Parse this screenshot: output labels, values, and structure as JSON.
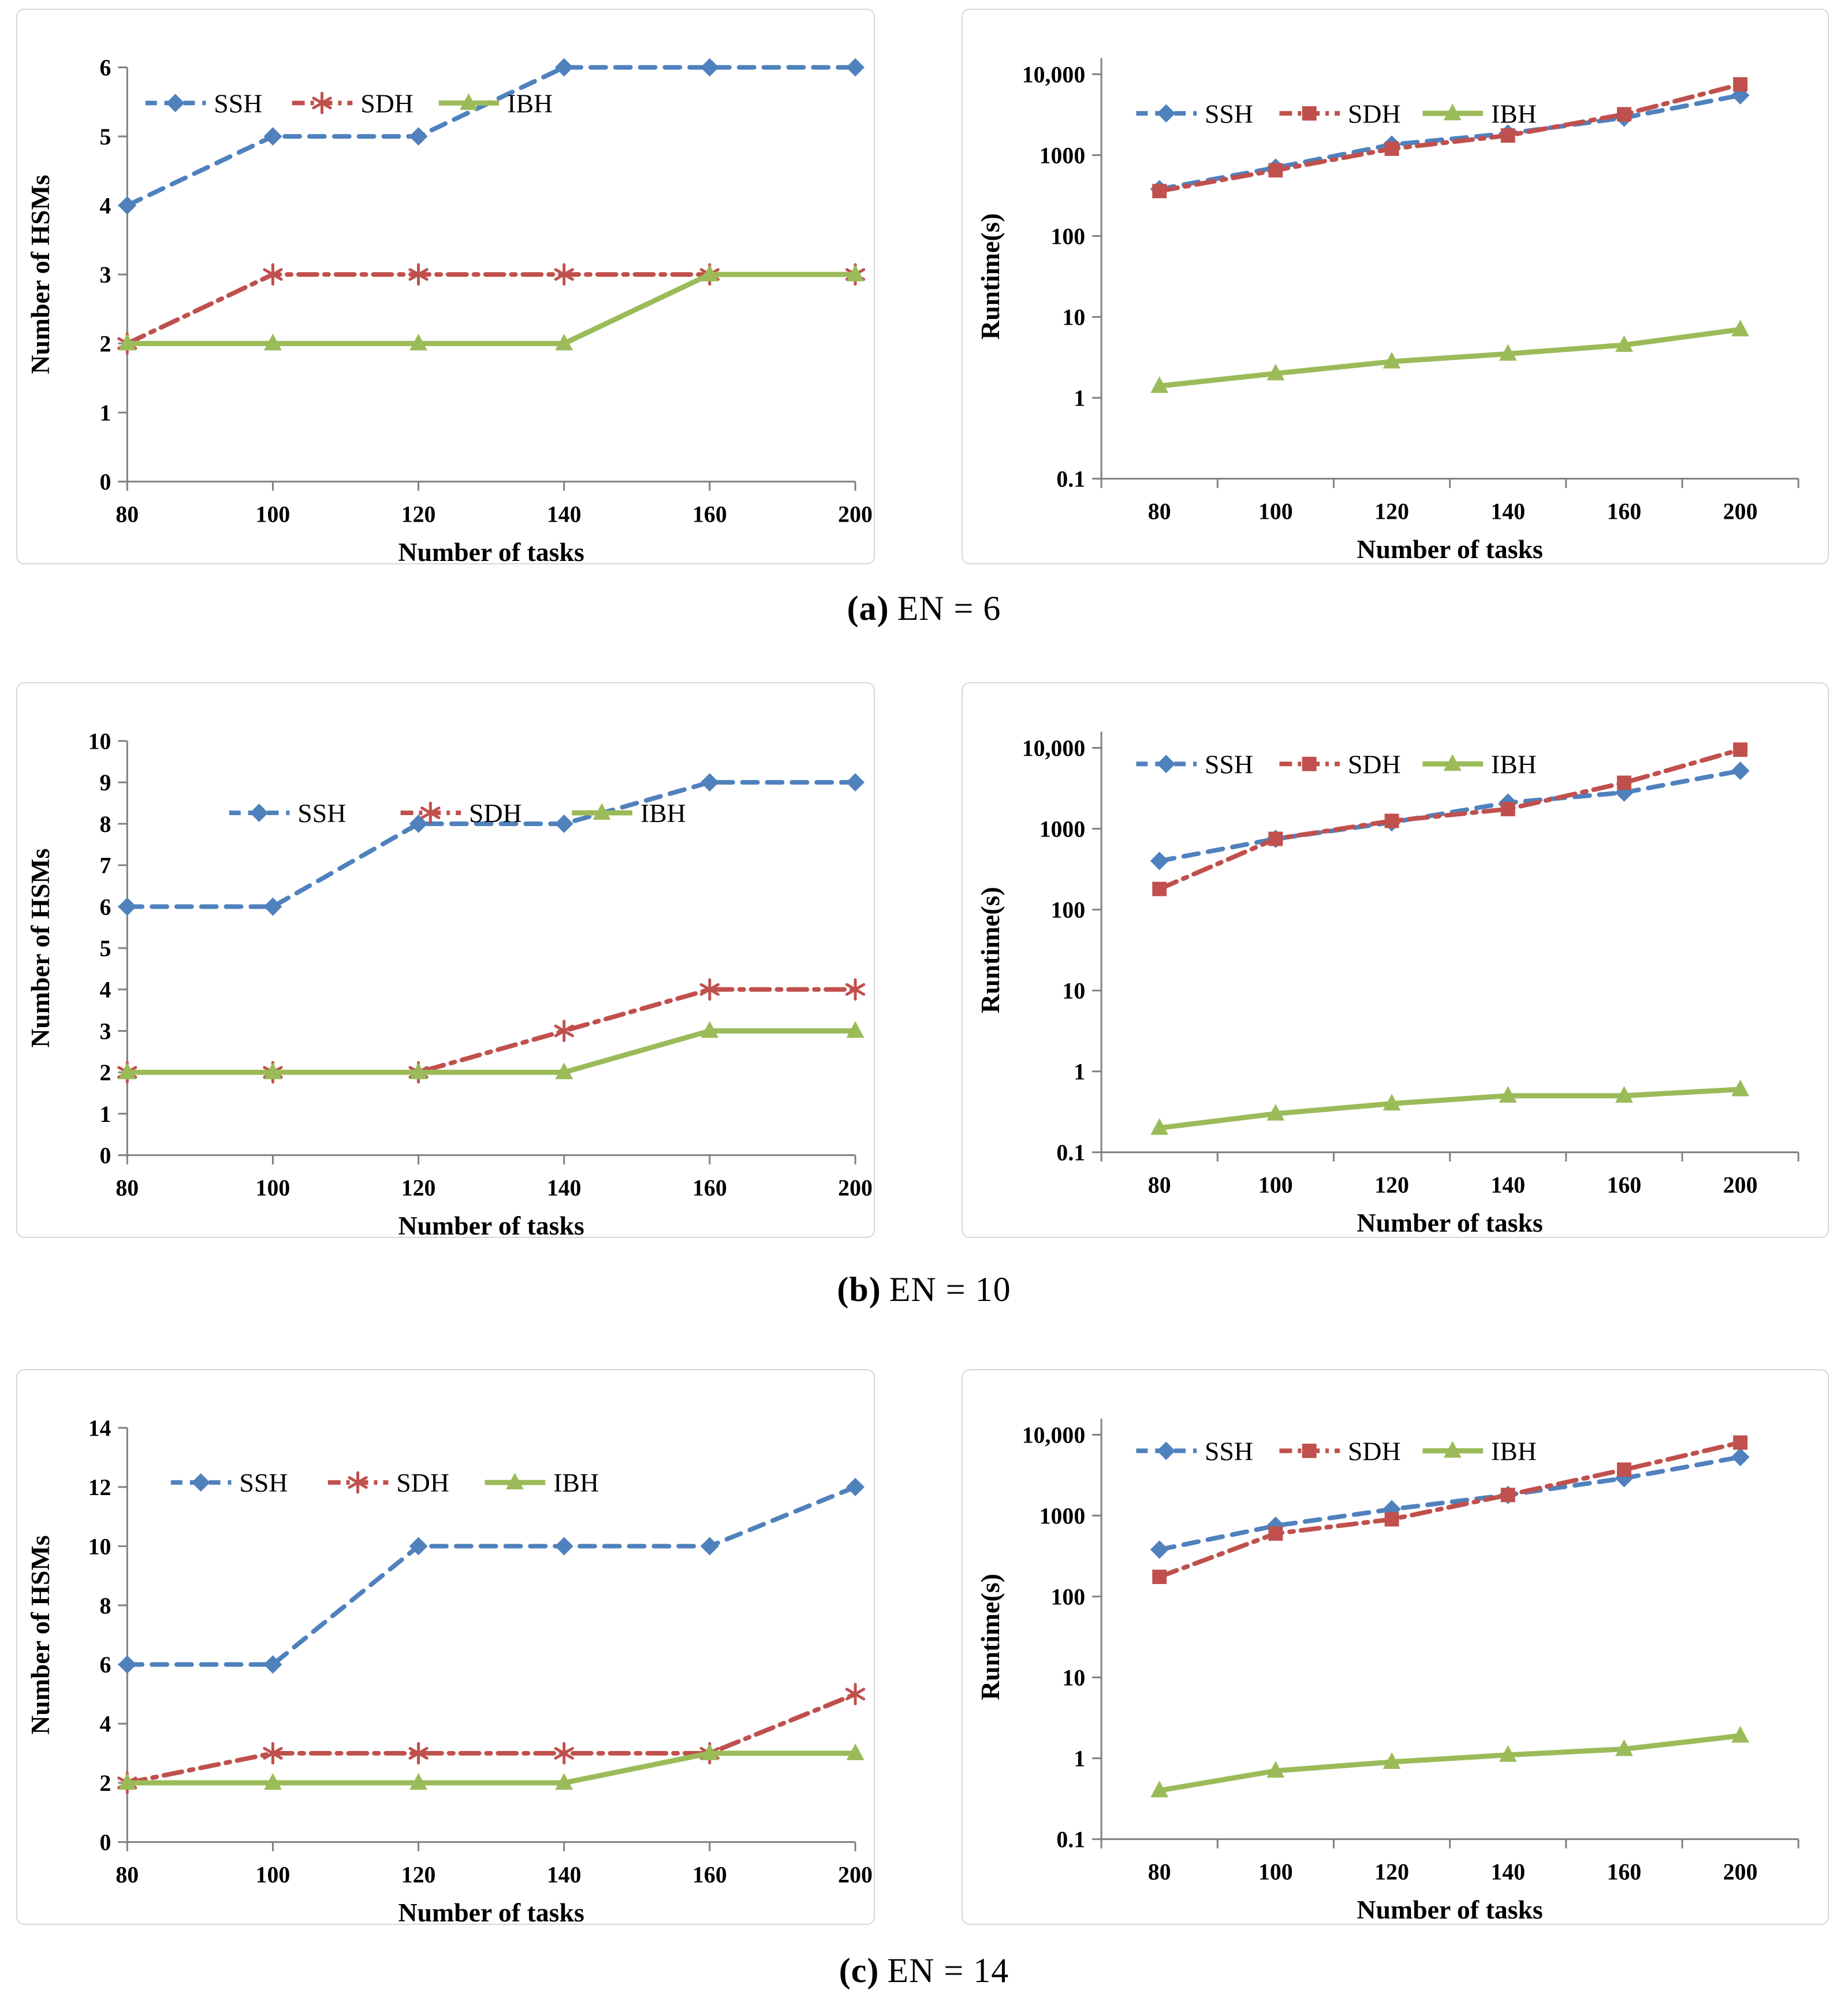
{
  "figure": {
    "captions": [
      {
        "label": "(a)",
        "text": "EN = 6"
      },
      {
        "label": "(b)",
        "text": "EN = 10"
      },
      {
        "label": "(c)",
        "text": "EN = 14"
      }
    ]
  },
  "colors": {
    "ssh": "#4F81BD",
    "sdh": "#C0504D",
    "ibh": "#9BBB59",
    "axis": "#808080",
    "legend_text": "#3f3f3f"
  },
  "chart_data": [
    {
      "id": "hsm-en6",
      "type": "line",
      "yscale": "linear",
      "x_mode": "on",
      "xlabel": "Number of tasks",
      "ylabel": "Number of HSMs",
      "categories": [
        "80",
        "100",
        "120",
        "140",
        "160",
        "200"
      ],
      "ylim": [
        0,
        6
      ],
      "ytick_step": 1,
      "grid": false,
      "legend_position": "top-left-horizontal",
      "series": [
        {
          "name": "SSH",
          "color_key": "ssh",
          "marker": "diamond",
          "line": "dashed",
          "values": [
            4,
            5,
            5,
            6,
            6,
            6
          ]
        },
        {
          "name": "SDH",
          "color_key": "sdh",
          "marker": "asterisk",
          "line": "dashdot",
          "values": [
            2,
            3,
            3,
            3,
            3,
            3
          ]
        },
        {
          "name": "IBH",
          "color_key": "ibh",
          "marker": "triangle",
          "line": "solid",
          "values": [
            2,
            2,
            2,
            2,
            3,
            3
          ]
        }
      ],
      "legend": {
        "start_frac": 0.025,
        "gap": 52,
        "y_off": 62
      }
    },
    {
      "id": "runtime-en6",
      "type": "line",
      "yscale": "log",
      "x_mode": "between",
      "xlabel": "Number of tasks",
      "ylabel": "Runtime(s)",
      "categories": [
        "80",
        "100",
        "120",
        "140",
        "160",
        "200"
      ],
      "ylim": [
        0.1,
        10000
      ],
      "yticks": [
        0.1,
        1,
        10,
        100,
        1000,
        10000
      ],
      "ytick_labels": [
        "0.1",
        "1",
        "10",
        "100",
        "1000",
        "10,000"
      ],
      "grid": false,
      "legend_position": "top-left-horizontal",
      "series": [
        {
          "name": "SSH",
          "color_key": "ssh",
          "marker": "diamond",
          "line": "dashed",
          "values": [
            380,
            700,
            1350,
            1850,
            2900,
            5500
          ]
        },
        {
          "name": "SDH",
          "color_key": "sdh",
          "marker": "square",
          "line": "dashdot",
          "values": [
            360,
            650,
            1200,
            1750,
            3200,
            7500
          ]
        },
        {
          "name": "IBH",
          "color_key": "ibh",
          "marker": "triangle",
          "line": "solid",
          "values": [
            1.4,
            2,
            2.8,
            3.5,
            4.5,
            7
          ]
        }
      ],
      "legend": {
        "start_frac": 0.05,
        "gap": 46,
        "y_off": 68
      }
    },
    {
      "id": "hsm-en10",
      "type": "line",
      "yscale": "linear",
      "x_mode": "on",
      "xlabel": "Number of tasks",
      "ylabel": "Number of HSMs",
      "categories": [
        "80",
        "100",
        "120",
        "140",
        "160",
        "200"
      ],
      "ylim": [
        0,
        10
      ],
      "ytick_step": 1,
      "grid": false,
      "legend_position": "top-center-horizontal",
      "series": [
        {
          "name": "SSH",
          "color_key": "ssh",
          "marker": "diamond",
          "line": "dashed",
          "values": [
            6,
            6,
            8,
            8,
            9,
            9
          ]
        },
        {
          "name": "SDH",
          "color_key": "sdh",
          "marker": "asterisk",
          "line": "dashdot",
          "values": [
            2,
            2,
            2,
            3,
            4,
            4
          ]
        },
        {
          "name": "IBH",
          "color_key": "ibh",
          "marker": "triangle",
          "line": "solid",
          "values": [
            2,
            2,
            2,
            2,
            3,
            3
          ]
        }
      ],
      "legend": {
        "start_frac": 0.14,
        "gap": 95,
        "y_off": 125
      }
    },
    {
      "id": "runtime-en10",
      "type": "line",
      "yscale": "log",
      "x_mode": "between",
      "xlabel": "Number of tasks",
      "ylabel": "Runtime(s)",
      "categories": [
        "80",
        "100",
        "120",
        "140",
        "160",
        "200"
      ],
      "ylim": [
        0.1,
        10000
      ],
      "yticks": [
        0.1,
        1,
        10,
        100,
        1000,
        10000
      ],
      "ytick_labels": [
        "0.1",
        "1",
        "10",
        "100",
        "1000",
        "10,000"
      ],
      "grid": false,
      "legend_position": "top-left-horizontal",
      "series": [
        {
          "name": "SSH",
          "color_key": "ssh",
          "marker": "diamond",
          "line": "dashed",
          "values": [
            400,
            750,
            1200,
            2100,
            2800,
            5200
          ]
        },
        {
          "name": "SDH",
          "color_key": "sdh",
          "marker": "square",
          "line": "dashdot",
          "values": [
            180,
            750,
            1250,
            1750,
            3700,
            9500
          ]
        },
        {
          "name": "IBH",
          "color_key": "ibh",
          "marker": "triangle",
          "line": "solid",
          "values": [
            0.2,
            0.3,
            0.4,
            0.5,
            0.5,
            0.6
          ]
        }
      ],
      "legend": {
        "start_frac": 0.05,
        "gap": 46,
        "y_off": 28
      }
    },
    {
      "id": "hsm-en14",
      "type": "line",
      "yscale": "linear",
      "x_mode": "on",
      "xlabel": "Number of tasks",
      "ylabel": "Number of HSMs",
      "categories": [
        "80",
        "100",
        "120",
        "140",
        "160",
        "200"
      ],
      "ylim": [
        0,
        14
      ],
      "ytick_step": 2,
      "grid": false,
      "legend_position": "top-left-horizontal",
      "series": [
        {
          "name": "SSH",
          "color_key": "ssh",
          "marker": "diamond",
          "line": "dashed",
          "values": [
            6,
            6,
            10,
            10,
            10,
            12
          ]
        },
        {
          "name": "SDH",
          "color_key": "sdh",
          "marker": "asterisk",
          "line": "dashdot",
          "values": [
            2,
            3,
            3,
            3,
            3,
            5
          ]
        },
        {
          "name": "IBH",
          "color_key": "ibh",
          "marker": "triangle",
          "line": "solid",
          "values": [
            2,
            2,
            2,
            2,
            3,
            3
          ]
        }
      ],
      "legend": {
        "start_frac": 0.06,
        "gap": 70,
        "y_off": 95
      }
    },
    {
      "id": "runtime-en14",
      "type": "line",
      "yscale": "log",
      "x_mode": "between",
      "xlabel": "Number of tasks",
      "ylabel": "Runtime(s)",
      "categories": [
        "80",
        "100",
        "120",
        "140",
        "160",
        "200"
      ],
      "ylim": [
        0.1,
        10000
      ],
      "yticks": [
        0.1,
        1,
        10,
        100,
        1000,
        10000
      ],
      "ytick_labels": [
        "0.1",
        "1",
        "10",
        "100",
        "1000",
        "10,000"
      ],
      "grid": false,
      "legend_position": "top-left-horizontal",
      "series": [
        {
          "name": "SSH",
          "color_key": "ssh",
          "marker": "diamond",
          "line": "dashed",
          "values": [
            380,
            750,
            1200,
            1800,
            2900,
            5300
          ]
        },
        {
          "name": "SDH",
          "color_key": "sdh",
          "marker": "square",
          "line": "dashdot",
          "values": [
            175,
            600,
            900,
            1800,
            3700,
            8000
          ]
        },
        {
          "name": "IBH",
          "color_key": "ibh",
          "marker": "triangle",
          "line": "solid",
          "values": [
            0.4,
            0.7,
            0.9,
            1.1,
            1.3,
            1.9
          ]
        }
      ],
      "legend": {
        "start_frac": 0.05,
        "gap": 46,
        "y_off": 28
      }
    }
  ]
}
